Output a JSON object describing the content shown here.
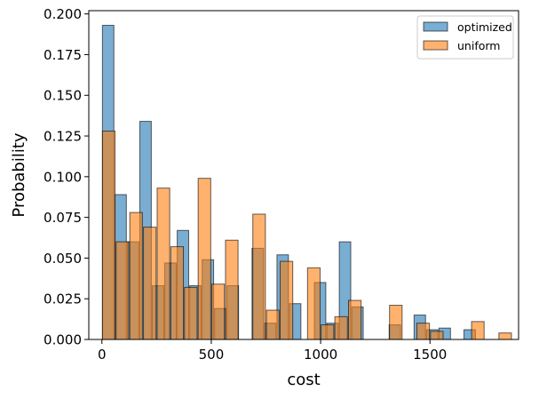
{
  "chart_data": {
    "type": "bar",
    "title": "",
    "xlabel": "cost",
    "ylabel": "Probability",
    "xlim": [
      -60,
      1905
    ],
    "ylim": [
      0,
      0.202
    ],
    "xticks": [
      0,
      500,
      1000,
      1500
    ],
    "yticks": [
      0.0,
      0.025,
      0.05,
      0.075,
      0.1,
      0.125,
      0.15,
      0.175,
      0.2
    ],
    "xtick_labels": [
      "0",
      "500",
      "1000",
      "1500"
    ],
    "ytick_labels": [
      "0.000",
      "0.025",
      "0.050",
      "0.075",
      "0.100",
      "0.125",
      "0.150",
      "0.175",
      "0.200"
    ],
    "grid": false,
    "legend_position": "top-right",
    "colors": {
      "optimized": "#1f77b4",
      "uniform": "#ff7f0e",
      "edge": "#000000"
    },
    "series": [
      {
        "name": "optimized",
        "bin_width": 57,
        "bars": [
          {
            "x0": 0,
            "value": 0.193
          },
          {
            "x0": 57,
            "value": 0.089
          },
          {
            "x0": 114,
            "value": 0.06
          },
          {
            "x0": 171,
            "value": 0.134
          },
          {
            "x0": 228,
            "value": 0.033
          },
          {
            "x0": 285,
            "value": 0.047
          },
          {
            "x0": 342,
            "value": 0.067
          },
          {
            "x0": 399,
            "value": 0.033
          },
          {
            "x0": 456,
            "value": 0.049
          },
          {
            "x0": 513,
            "value": 0.019
          },
          {
            "x0": 570,
            "value": 0.033
          },
          {
            "x0": 684,
            "value": 0.056
          },
          {
            "x0": 741,
            "value": 0.01
          },
          {
            "x0": 798,
            "value": 0.052
          },
          {
            "x0": 855,
            "value": 0.022
          },
          {
            "x0": 969,
            "value": 0.035
          },
          {
            "x0": 1026,
            "value": 0.01
          },
          {
            "x0": 1083,
            "value": 0.06
          },
          {
            "x0": 1140,
            "value": 0.02
          },
          {
            "x0": 1311,
            "value": 0.009
          },
          {
            "x0": 1425,
            "value": 0.015
          },
          {
            "x0": 1482,
            "value": 0.006
          },
          {
            "x0": 1539,
            "value": 0.007
          },
          {
            "x0": 1653,
            "value": 0.006
          }
        ]
      },
      {
        "name": "uniform",
        "bin_width": 62.5,
        "bars": [
          {
            "x0": 0,
            "value": 0.128
          },
          {
            "x0": 62.5,
            "value": 0.06
          },
          {
            "x0": 125,
            "value": 0.078
          },
          {
            "x0": 187.5,
            "value": 0.069
          },
          {
            "x0": 250,
            "value": 0.093
          },
          {
            "x0": 312.5,
            "value": 0.057
          },
          {
            "x0": 375,
            "value": 0.032
          },
          {
            "x0": 437.5,
            "value": 0.099
          },
          {
            "x0": 500,
            "value": 0.034
          },
          {
            "x0": 562.5,
            "value": 0.061
          },
          {
            "x0": 687.5,
            "value": 0.077
          },
          {
            "x0": 750,
            "value": 0.018
          },
          {
            "x0": 812.5,
            "value": 0.048
          },
          {
            "x0": 937.5,
            "value": 0.044
          },
          {
            "x0": 1000,
            "value": 0.009
          },
          {
            "x0": 1062.5,
            "value": 0.014
          },
          {
            "x0": 1125,
            "value": 0.024
          },
          {
            "x0": 1312.5,
            "value": 0.021
          },
          {
            "x0": 1437.5,
            "value": 0.01
          },
          {
            "x0": 1500,
            "value": 0.005
          },
          {
            "x0": 1687.5,
            "value": 0.011
          },
          {
            "x0": 1812.5,
            "value": 0.004
          }
        ]
      }
    ]
  }
}
